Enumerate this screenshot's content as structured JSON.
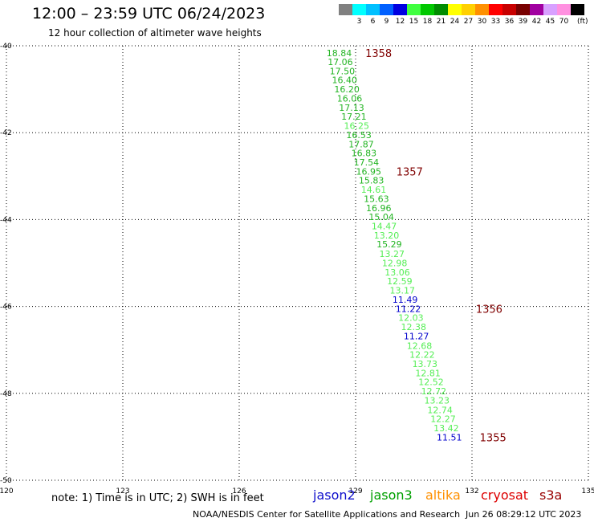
{
  "header": {
    "title": "12:00 – 23:59 UTC 06/24/2023",
    "subtitle": "12 hour collection of altimeter wave heights"
  },
  "colorbar": {
    "unit": "(ft)",
    "entries": [
      {
        "label": "",
        "color": "#808080"
      },
      {
        "label": "3",
        "color": "#00ffff"
      },
      {
        "label": "6",
        "color": "#00c0ff"
      },
      {
        "label": "9",
        "color": "#0060ff"
      },
      {
        "label": "12",
        "color": "#0000e0"
      },
      {
        "label": "15",
        "color": "#40ff40"
      },
      {
        "label": "18",
        "color": "#00c800"
      },
      {
        "label": "21",
        "color": "#008c00"
      },
      {
        "label": "24",
        "color": "#ffff00"
      },
      {
        "label": "27",
        "color": "#ffd000"
      },
      {
        "label": "30",
        "color": "#ff9000"
      },
      {
        "label": "33",
        "color": "#ff0000"
      },
      {
        "label": "36",
        "color": "#c80000"
      },
      {
        "label": "39",
        "color": "#780000"
      },
      {
        "label": "42",
        "color": "#a000a0"
      },
      {
        "label": "45",
        "color": "#d8a0ff"
      },
      {
        "label": "70",
        "color": "#ff90e0"
      },
      {
        "label": "",
        "color": "#000000"
      }
    ]
  },
  "chart_data": {
    "type": "scatter",
    "xlim": [
      120,
      135
    ],
    "ylim": [
      -50,
      -40
    ],
    "x_ticks": [
      "120",
      "123",
      "126",
      "129",
      "132",
      "135"
    ],
    "y_ticks": [
      "-40",
      "-42",
      "-44",
      "-46",
      "-48",
      "-50"
    ],
    "grid": true,
    "colors": {
      "mid_green": "#22b422",
      "light_green": "#55ee55",
      "blue": "#0000cc",
      "time_red": "#800000"
    },
    "points": [
      {
        "lon": 128.25,
        "lat": -40.17,
        "label": "18.84",
        "color": "mid_green"
      },
      {
        "lon": 128.28,
        "lat": -40.37,
        "label": "17.06",
        "color": "mid_green"
      },
      {
        "lon": 128.33,
        "lat": -40.58,
        "label": "17.50",
        "color": "mid_green"
      },
      {
        "lon": 128.39,
        "lat": -40.79,
        "label": "16.40",
        "color": "mid_green"
      },
      {
        "lon": 128.45,
        "lat": -41.0,
        "label": "16.20",
        "color": "mid_green"
      },
      {
        "lon": 128.52,
        "lat": -41.21,
        "label": "16.06",
        "color": "mid_green"
      },
      {
        "lon": 128.57,
        "lat": -41.42,
        "label": "17.13",
        "color": "mid_green"
      },
      {
        "lon": 128.63,
        "lat": -41.63,
        "label": "17.21",
        "color": "mid_green"
      },
      {
        "lon": 128.7,
        "lat": -41.84,
        "label": "16.25",
        "color": "light_green"
      },
      {
        "lon": 128.76,
        "lat": -42.05,
        "label": "16.53",
        "color": "mid_green"
      },
      {
        "lon": 128.82,
        "lat": -42.26,
        "label": "17.87",
        "color": "mid_green"
      },
      {
        "lon": 128.89,
        "lat": -42.47,
        "label": "16.83",
        "color": "mid_green"
      },
      {
        "lon": 128.95,
        "lat": -42.68,
        "label": "17.54",
        "color": "mid_green"
      },
      {
        "lon": 129.01,
        "lat": -42.89,
        "label": "16.95",
        "color": "mid_green"
      },
      {
        "lon": 129.08,
        "lat": -43.1,
        "label": "15.83",
        "color": "mid_green"
      },
      {
        "lon": 129.14,
        "lat": -43.31,
        "label": "14.61",
        "color": "light_green"
      },
      {
        "lon": 129.21,
        "lat": -43.52,
        "label": "15.63",
        "color": "mid_green"
      },
      {
        "lon": 129.27,
        "lat": -43.73,
        "label": "16.96",
        "color": "mid_green"
      },
      {
        "lon": 129.34,
        "lat": -43.94,
        "label": "15.04",
        "color": "mid_green"
      },
      {
        "lon": 129.41,
        "lat": -44.15,
        "label": "14.47",
        "color": "light_green"
      },
      {
        "lon": 129.47,
        "lat": -44.36,
        "label": "13.20",
        "color": "light_green"
      },
      {
        "lon": 129.54,
        "lat": -44.57,
        "label": "15.29",
        "color": "mid_green"
      },
      {
        "lon": 129.61,
        "lat": -44.79,
        "label": "13.27",
        "color": "light_green"
      },
      {
        "lon": 129.68,
        "lat": -45.0,
        "label": "12.98",
        "color": "light_green"
      },
      {
        "lon": 129.75,
        "lat": -45.21,
        "label": "13.06",
        "color": "light_green"
      },
      {
        "lon": 129.81,
        "lat": -45.42,
        "label": "12.59",
        "color": "light_green"
      },
      {
        "lon": 129.88,
        "lat": -45.63,
        "label": "13.17",
        "color": "light_green"
      },
      {
        "lon": 129.95,
        "lat": -45.84,
        "label": "11.49",
        "color": "blue"
      },
      {
        "lon": 130.03,
        "lat": -46.05,
        "label": "11.22",
        "color": "blue"
      },
      {
        "lon": 130.1,
        "lat": -46.26,
        "label": "12.03",
        "color": "light_green"
      },
      {
        "lon": 130.17,
        "lat": -46.47,
        "label": "12.38",
        "color": "light_green"
      },
      {
        "lon": 130.24,
        "lat": -46.68,
        "label": "11.27",
        "color": "blue"
      },
      {
        "lon": 130.32,
        "lat": -46.9,
        "label": "12.68",
        "color": "light_green"
      },
      {
        "lon": 130.39,
        "lat": -47.11,
        "label": "12.22",
        "color": "light_green"
      },
      {
        "lon": 130.46,
        "lat": -47.32,
        "label": "13.73",
        "color": "light_green"
      },
      {
        "lon": 130.54,
        "lat": -47.53,
        "label": "12.81",
        "color": "light_green"
      },
      {
        "lon": 130.62,
        "lat": -47.74,
        "label": "12.52",
        "color": "light_green"
      },
      {
        "lon": 130.69,
        "lat": -47.95,
        "label": "12.72",
        "color": "light_green"
      },
      {
        "lon": 130.77,
        "lat": -48.16,
        "label": "13.23",
        "color": "light_green"
      },
      {
        "lon": 130.85,
        "lat": -48.38,
        "label": "12.74",
        "color": "light_green"
      },
      {
        "lon": 130.93,
        "lat": -48.59,
        "label": "12.27",
        "color": "light_green"
      },
      {
        "lon": 131.01,
        "lat": -48.8,
        "label": "13.42",
        "color": "light_green"
      },
      {
        "lon": 131.09,
        "lat": -49.01,
        "label": "11.51",
        "color": "blue"
      }
    ],
    "time_labels": [
      {
        "lon": 129.25,
        "lat": -40.17,
        "label": "1358"
      },
      {
        "lon": 130.05,
        "lat": -42.89,
        "label": "1357"
      },
      {
        "lon": 132.1,
        "lat": -46.05,
        "label": "1356"
      },
      {
        "lon": 132.2,
        "lat": -49.01,
        "label": "1355"
      }
    ]
  },
  "footer": {
    "note": "note:  1) Time is in UTC; 2) SWH is in feet",
    "satellites": [
      {
        "name": "jason2",
        "color": "#1010cc"
      },
      {
        "name": "jason3",
        "color": "#00a000"
      },
      {
        "name": "altika",
        "color": "#ff9000"
      },
      {
        "name": "cryosat",
        "color": "#dd0000"
      },
      {
        "name": "s3a",
        "color": "#990000"
      }
    ],
    "credit": "NOAA/NESDIS Center for Satellite Applications and Research",
    "timestamp": "Jun 26 08:29:12 UTC 2023"
  }
}
